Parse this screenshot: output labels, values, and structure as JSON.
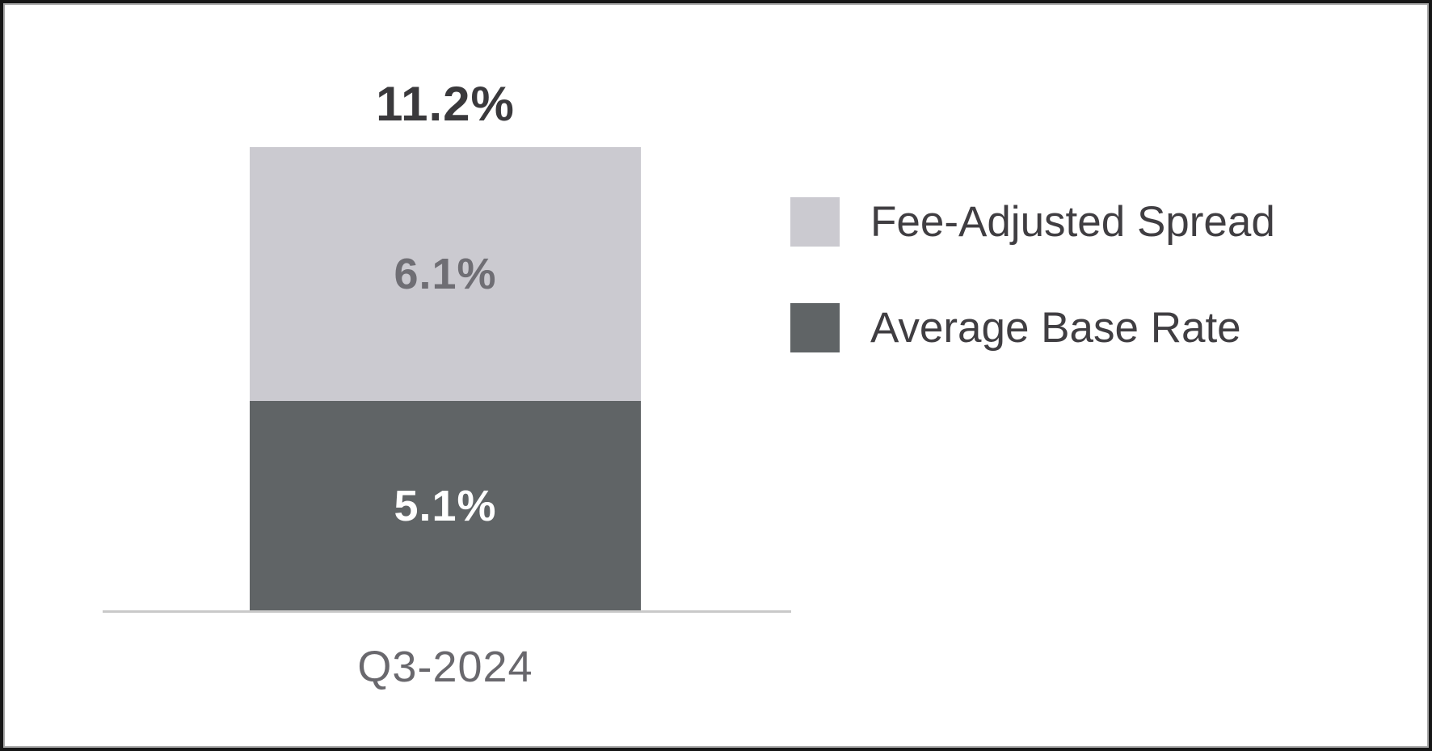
{
  "window": {
    "background": "#ffffff",
    "border_color": "#161616",
    "border_inner_color": "#a6a6a6"
  },
  "chart_data": {
    "type": "bar",
    "stacked": true,
    "title": "",
    "xlabel": "",
    "ylabel": "",
    "grid": false,
    "categories": [
      "Q3-2024"
    ],
    "series": [
      {
        "name": "Fee-Adjusted Spread",
        "values": [
          6.1
        ],
        "value_label": "6.1%",
        "color": "#cbcad0",
        "value_label_color": "#6f6e74",
        "stack_position": "top"
      },
      {
        "name": "Average Base Rate",
        "values": [
          5.1
        ],
        "value_label": "5.1%",
        "color": "#606466",
        "value_label_color": "#ffffff",
        "stack_position": "bottom"
      }
    ],
    "totals": [
      11.2
    ],
    "total_labels": [
      "11.2%"
    ],
    "legend": {
      "position": "right",
      "entries": [
        "Fee-Adjusted Spread",
        "Average Base Rate"
      ]
    },
    "axis": {
      "x_tick_labels": [
        "Q3-2024"
      ],
      "baseline_color": "#c9c9c9",
      "y_axis_visible": false,
      "y_tick_labels_visible": false
    },
    "text_colors": {
      "total_label": "#3a393c",
      "x_tick": "#69686d",
      "legend": "#403e42"
    }
  }
}
